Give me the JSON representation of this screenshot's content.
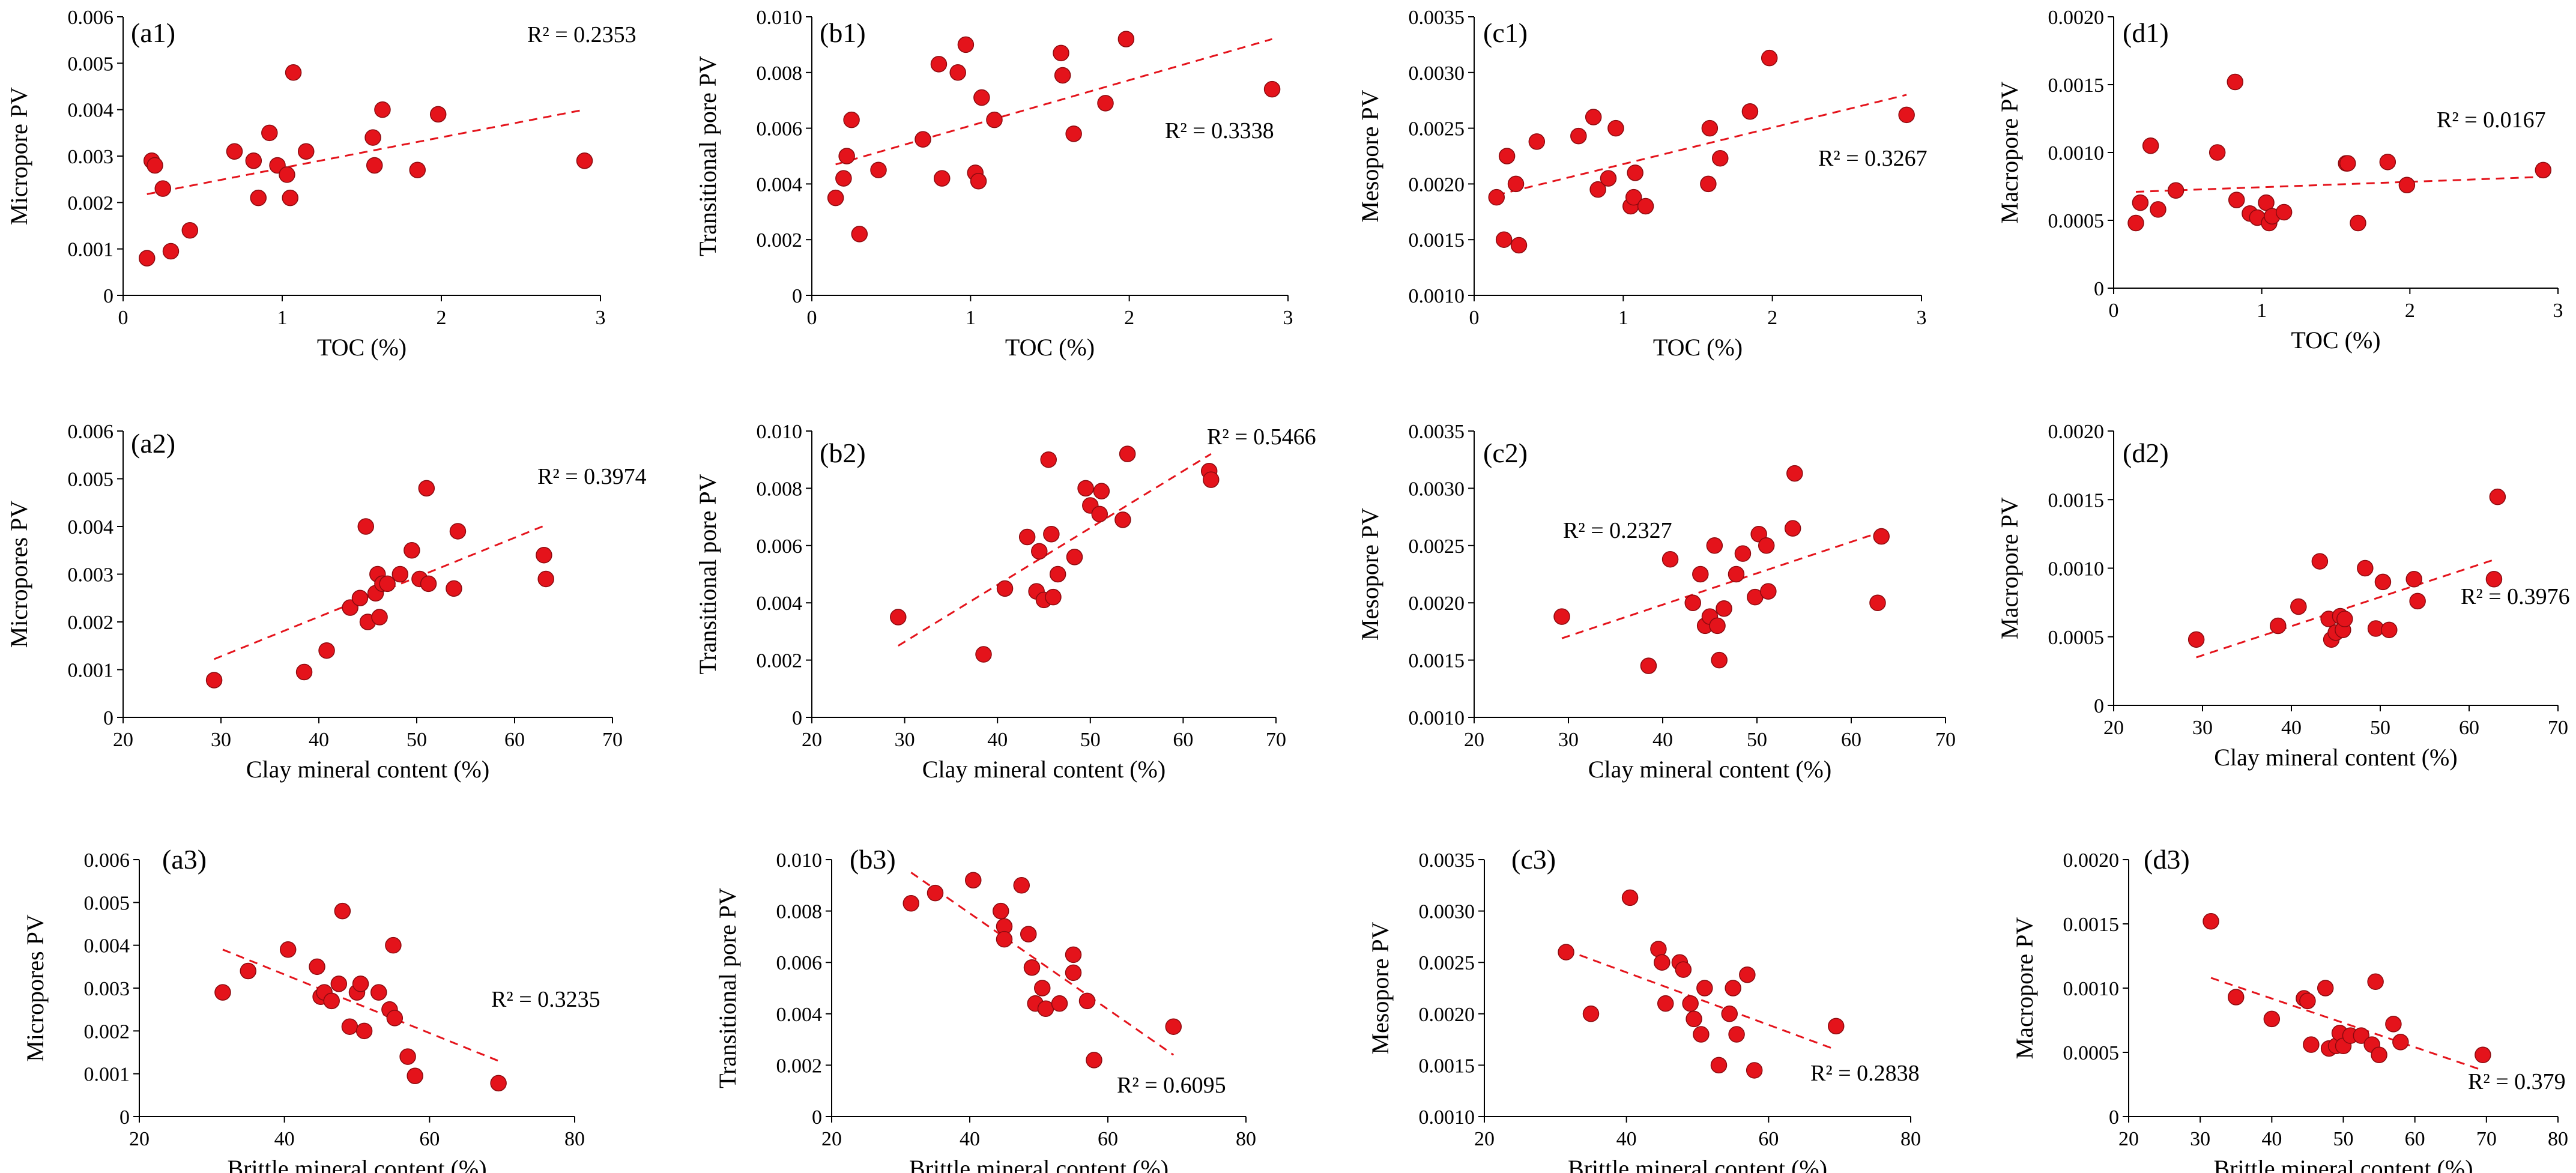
{
  "colors": {
    "point_fill": "#e4131b",
    "point_stroke": "#8b0a0f",
    "trend": "#e4131b",
    "axis": "#000000"
  },
  "chart_data": [
    {
      "id": "a1",
      "type": "scatter",
      "panel_label": "(a1)",
      "xlabel": "TOC (%)",
      "ylabel": "Micropore PV",
      "r2": "R² = 0.2353",
      "xlim": [
        0,
        3
      ],
      "ylim": [
        0,
        0.006
      ],
      "xticks": [
        0,
        1,
        2,
        3
      ],
      "yticks": [
        0,
        0.001,
        0.002,
        0.003,
        0.004,
        0.005,
        0.006
      ],
      "xtick_labels": [
        "0",
        "1",
        "2",
        "3"
      ],
      "ytick_labels": [
        "0",
        "0.001",
        "0.002",
        "0.003",
        "0.004",
        "0.005",
        "0.006"
      ],
      "x": [
        0.15,
        0.18,
        0.2,
        0.25,
        0.3,
        0.42,
        0.7,
        0.82,
        0.85,
        0.92,
        0.97,
        1.03,
        1.05,
        1.07,
        1.15,
        1.57,
        1.58,
        1.63,
        1.85,
        1.98,
        2.9
      ],
      "y": [
        0.0008,
        0.0029,
        0.0028,
        0.0023,
        0.00095,
        0.0014,
        0.0031,
        0.0029,
        0.0021,
        0.0035,
        0.0028,
        0.0026,
        0.0021,
        0.0048,
        0.0031,
        0.0034,
        0.0028,
        0.004,
        0.0027,
        0.0039,
        0.0029
      ],
      "trendline": {
        "x": [
          0.15,
          2.9
        ],
        "y": [
          0.00218,
          0.004
        ]
      }
    },
    {
      "id": "b1",
      "type": "scatter",
      "panel_label": "(b1)",
      "xlabel": "TOC (%)",
      "ylabel": "Transitional pore PV",
      "r2": "R² = 0.3338",
      "xlim": [
        0,
        3
      ],
      "ylim": [
        0,
        0.01
      ],
      "xticks": [
        0,
        1,
        2,
        3
      ],
      "yticks": [
        0,
        0.002,
        0.004,
        0.006,
        0.008,
        0.01
      ],
      "xtick_labels": [
        "0",
        "1",
        "2",
        "3"
      ],
      "ytick_labels": [
        "0",
        "0.002",
        "0.004",
        "0.006",
        "0.008",
        "0.010"
      ],
      "x": [
        0.15,
        0.2,
        0.22,
        0.25,
        0.3,
        0.42,
        0.7,
        0.8,
        0.82,
        0.92,
        0.97,
        1.03,
        1.05,
        1.07,
        1.15,
        1.57,
        1.58,
        1.65,
        1.85,
        1.98,
        2.9
      ],
      "y": [
        0.0035,
        0.0042,
        0.005,
        0.0063,
        0.0022,
        0.0045,
        0.0056,
        0.0083,
        0.0042,
        0.008,
        0.009,
        0.0044,
        0.0041,
        0.0071,
        0.0063,
        0.0087,
        0.0079,
        0.0058,
        0.0069,
        0.0092,
        0.0074
      ],
      "trendline": {
        "x": [
          0.15,
          2.9
        ],
        "y": [
          0.0047,
          0.0092
        ]
      }
    },
    {
      "id": "c1",
      "type": "scatter",
      "panel_label": "(c1)",
      "xlabel": "TOC (%)",
      "ylabel": "Mesopore PV",
      "r2": "R² = 0.3267",
      "xlim": [
        0,
        3
      ],
      "ylim": [
        0.001,
        0.0035
      ],
      "xticks": [
        0,
        1,
        2,
        3
      ],
      "yticks": [
        0.001,
        0.0015,
        0.002,
        0.0025,
        0.003,
        0.0035
      ],
      "xtick_labels": [
        "0",
        "1",
        "2",
        "3"
      ],
      "ytick_labels": [
        "0.0010",
        "0.0015",
        "0.0020",
        "0.0025",
        "0.0030",
        "0.0035"
      ],
      "x": [
        0.15,
        0.2,
        0.22,
        0.28,
        0.3,
        0.42,
        0.7,
        0.8,
        0.83,
        0.9,
        0.95,
        1.05,
        1.07,
        1.08,
        1.15,
        1.57,
        1.58,
        1.65,
        1.85,
        1.98,
        2.9
      ],
      "y": [
        0.00188,
        0.0015,
        0.00225,
        0.002,
        0.00145,
        0.00238,
        0.00243,
        0.0026,
        0.00195,
        0.00205,
        0.0025,
        0.0018,
        0.00188,
        0.0021,
        0.0018,
        0.002,
        0.0025,
        0.00223,
        0.00265,
        0.00313,
        0.00262
      ],
      "trendline": {
        "x": [
          0.15,
          2.9
        ],
        "y": [
          0.0019,
          0.0028
        ]
      }
    },
    {
      "id": "d1",
      "type": "scatter",
      "panel_label": "(d1)",
      "xlabel": "TOC (%)",
      "ylabel": "Macropore PV",
      "r2": "R² = 0.0167",
      "xlim": [
        0,
        3
      ],
      "ylim": [
        0,
        0.002
      ],
      "xticks": [
        0,
        1,
        2,
        3
      ],
      "yticks": [
        0,
        0.0005,
        0.001,
        0.0015,
        0.002
      ],
      "xtick_labels": [
        "0",
        "1",
        "2",
        "3"
      ],
      "ytick_labels": [
        "0",
        "0.0005",
        "0.0010",
        "0.0015",
        "0.0020"
      ],
      "x": [
        0.15,
        0.18,
        0.25,
        0.3,
        0.42,
        0.7,
        0.82,
        0.83,
        0.92,
        0.97,
        1.03,
        1.05,
        1.07,
        1.15,
        1.57,
        1.58,
        1.65,
        1.85,
        1.98,
        2.9
      ],
      "y": [
        0.00048,
        0.00063,
        0.00105,
        0.00058,
        0.00072,
        0.001,
        0.00152,
        0.00065,
        0.00055,
        0.00052,
        0.00063,
        0.00048,
        0.00053,
        0.00056,
        0.00092,
        0.00092,
        0.00048,
        0.00093,
        0.00076,
        0.00087
      ],
      "trendline": {
        "x": [
          0.15,
          2.9
        ],
        "y": [
          0.00071,
          0.00082
        ]
      }
    },
    {
      "id": "a2",
      "type": "scatter",
      "panel_label": "(a2)",
      "xlabel": "Clay mineral content (%)",
      "ylabel": "Micropores PV",
      "r2": "R² = 0.3974",
      "xlim": [
        20,
        70
      ],
      "ylim": [
        0,
        0.006
      ],
      "xticks": [
        20,
        30,
        40,
        50,
        60,
        70
      ],
      "yticks": [
        0,
        0.001,
        0.002,
        0.003,
        0.004,
        0.005,
        0.006
      ],
      "xtick_labels": [
        "20",
        "30",
        "40",
        "50",
        "60",
        "70"
      ],
      "ytick_labels": [
        "0",
        "0.001",
        "0.002",
        "0.003",
        "0.004",
        "0.005",
        "0.006"
      ],
      "x": [
        29.3,
        38.5,
        40.8,
        43.2,
        44.2,
        44.8,
        45.0,
        45.8,
        46.0,
        46.2,
        46.5,
        47.0,
        48.3,
        49.5,
        50.3,
        51.0,
        51.2,
        53.8,
        54.2,
        63.0,
        63.2
      ],
      "y": [
        0.00078,
        0.00095,
        0.0014,
        0.0023,
        0.0025,
        0.004,
        0.002,
        0.0026,
        0.003,
        0.0021,
        0.0028,
        0.0028,
        0.003,
        0.0035,
        0.0029,
        0.0048,
        0.0028,
        0.0027,
        0.0039,
        0.0034,
        0.0029
      ],
      "trendline": {
        "x": [
          29.3,
          63.2
        ],
        "y": [
          0.00122,
          0.00403
        ]
      }
    },
    {
      "id": "b2",
      "type": "scatter",
      "panel_label": "(b2)",
      "xlabel": "Clay mineral content (%)",
      "ylabel": "Transitional pore PV",
      "r2": "R² = 0.5466",
      "xlim": [
        20,
        70
      ],
      "ylim": [
        0,
        0.01
      ],
      "xticks": [
        20,
        30,
        40,
        50,
        60,
        70
      ],
      "yticks": [
        0,
        0.002,
        0.004,
        0.006,
        0.008,
        0.01
      ],
      "xtick_labels": [
        "20",
        "30",
        "40",
        "50",
        "60",
        "70"
      ],
      "ytick_labels": [
        "0",
        "0.002",
        "0.004",
        "0.006",
        "0.008",
        "0.010"
      ],
      "x": [
        29.3,
        38.5,
        40.8,
        43.2,
        44.2,
        44.5,
        45.0,
        45.5,
        45.8,
        46.0,
        46.5,
        48.3,
        49.5,
        50.0,
        51.0,
        51.2,
        53.5,
        54.0,
        62.8,
        63.0
      ],
      "y": [
        0.0035,
        0.0022,
        0.0045,
        0.0063,
        0.0044,
        0.0058,
        0.0041,
        0.009,
        0.0064,
        0.0042,
        0.005,
        0.0056,
        0.008,
        0.0074,
        0.0071,
        0.0079,
        0.0069,
        0.0092,
        0.0086,
        0.0083
      ],
      "trendline": {
        "x": [
          29.3,
          63.0
        ],
        "y": [
          0.0025,
          0.0092
        ]
      }
    },
    {
      "id": "c2",
      "type": "scatter",
      "panel_label": "(c2)",
      "xlabel": "Clay mineral content (%)",
      "ylabel": "Mesopore PV",
      "r2": "R² = 0.2327",
      "xlim": [
        20,
        70
      ],
      "ylim": [
        0.001,
        0.0035
      ],
      "xticks": [
        20,
        30,
        40,
        50,
        60,
        70
      ],
      "yticks": [
        0.001,
        0.0015,
        0.002,
        0.0025,
        0.003,
        0.0035
      ],
      "xtick_labels": [
        "20",
        "30",
        "40",
        "50",
        "60",
        "70"
      ],
      "ytick_labels": [
        "0.0010",
        "0.0015",
        "0.0020",
        "0.0025",
        "0.0030",
        "0.0035"
      ],
      "x": [
        29.3,
        38.5,
        40.8,
        43.2,
        44.0,
        44.5,
        45.0,
        45.5,
        45.8,
        46.0,
        46.5,
        47.8,
        48.5,
        49.8,
        50.2,
        51.0,
        51.2,
        53.8,
        54.0,
        62.8,
        63.2
      ],
      "y": [
        0.00188,
        0.00145,
        0.00238,
        0.002,
        0.00225,
        0.0018,
        0.00188,
        0.0025,
        0.0018,
        0.0015,
        0.00195,
        0.00225,
        0.00243,
        0.00205,
        0.0026,
        0.0025,
        0.0021,
        0.00265,
        0.00313,
        0.002,
        0.00258
      ],
      "trendline": {
        "x": [
          29.3,
          63.2
        ],
        "y": [
          0.00169,
          0.00262
        ]
      }
    },
    {
      "id": "d2",
      "type": "scatter",
      "panel_label": "(d2)",
      "xlabel": "Clay mineral content (%)",
      "ylabel": "Macropore PV",
      "r2": "R² = 0.3976",
      "xlim": [
        20,
        70
      ],
      "ylim": [
        0,
        0.002
      ],
      "xticks": [
        20,
        30,
        40,
        50,
        60,
        70
      ],
      "yticks": [
        0,
        0.0005,
        0.001,
        0.0015,
        0.002
      ],
      "xtick_labels": [
        "20",
        "30",
        "40",
        "50",
        "60",
        "70"
      ],
      "ytick_labels": [
        "0",
        "0.0005",
        "0.0010",
        "0.0015",
        "0.0020"
      ],
      "x": [
        29.3,
        38.5,
        40.8,
        43.2,
        44.2,
        44.5,
        45.0,
        45.5,
        45.8,
        46.0,
        48.3,
        49.5,
        50.3,
        51.0,
        53.8,
        54.2,
        62.8,
        63.2
      ],
      "y": [
        0.00048,
        0.00058,
        0.00072,
        0.00105,
        0.00063,
        0.00048,
        0.00053,
        0.00065,
        0.00055,
        0.00063,
        0.001,
        0.00056,
        0.0009,
        0.00055,
        0.00092,
        0.00076,
        0.00092,
        0.00152
      ],
      "trendline": {
        "x": [
          29.3,
          63.2
        ],
        "y": [
          0.00035,
          0.00107
        ]
      }
    },
    {
      "id": "a3",
      "type": "scatter",
      "panel_label": "(a3)",
      "xlabel": "Brittle mineral content (%)",
      "ylabel": "Micropores PV",
      "r2": "R² = 0.3235",
      "xlim": [
        20,
        80
      ],
      "ylim": [
        0,
        0.006
      ],
      "xticks": [
        20,
        40,
        60,
        80
      ],
      "yticks": [
        0,
        0.001,
        0.002,
        0.003,
        0.004,
        0.005,
        0.006
      ],
      "xtick_labels": [
        "20",
        "40",
        "60",
        "80"
      ],
      "ytick_labels": [
        "0",
        "0.001",
        "0.002",
        "0.003",
        "0.004",
        "0.005",
        "0.006"
      ],
      "x": [
        31.5,
        35.0,
        40.5,
        44.5,
        45.0,
        45.5,
        46.5,
        47.5,
        48.0,
        49.0,
        50.0,
        50.5,
        51.0,
        53.0,
        54.5,
        55.0,
        55.2,
        57.0,
        58.0,
        69.5
      ],
      "y": [
        0.0029,
        0.0034,
        0.0039,
        0.0035,
        0.0028,
        0.0029,
        0.0027,
        0.0031,
        0.0048,
        0.0021,
        0.0029,
        0.0031,
        0.002,
        0.0029,
        0.0025,
        0.004,
        0.0023,
        0.0014,
        0.00095,
        0.00078
      ],
      "trendline": {
        "x": [
          31.5,
          69.5
        ],
        "y": [
          0.0039,
          0.0013
        ]
      }
    },
    {
      "id": "b3",
      "type": "scatter",
      "panel_label": "(b3)",
      "xlabel": "Brittle mineral content (%)",
      "ylabel": "Transitional pore PV",
      "r2": "R² = 0.6095",
      "xlim": [
        20,
        80
      ],
      "ylim": [
        0,
        0.01
      ],
      "xticks": [
        20,
        40,
        60,
        80
      ],
      "yticks": [
        0,
        0.002,
        0.004,
        0.006,
        0.008,
        0.01
      ],
      "xtick_labels": [
        "20",
        "40",
        "60",
        "80"
      ],
      "ytick_labels": [
        "0",
        "0.002",
        "0.004",
        "0.006",
        "0.008",
        "0.010"
      ],
      "x": [
        31.5,
        35.0,
        40.5,
        44.5,
        45.0,
        45.0,
        47.5,
        48.5,
        49.0,
        49.5,
        50.5,
        51.0,
        53.0,
        55.0,
        55.0,
        57.0,
        58.0,
        69.5
      ],
      "y": [
        0.0083,
        0.0087,
        0.0092,
        0.008,
        0.0074,
        0.0069,
        0.009,
        0.0071,
        0.0058,
        0.0044,
        0.005,
        0.0042,
        0.0044,
        0.0063,
        0.0056,
        0.0045,
        0.0022,
        0.0035
      ],
      "trendline": {
        "x": [
          31.5,
          69.5
        ],
        "y": [
          0.0095,
          0.0024
        ]
      }
    },
    {
      "id": "c3",
      "type": "scatter",
      "panel_label": "(c3)",
      "xlabel": "Brittle mineral content (%)",
      "ylabel": "Mesopore PV",
      "r2": "R² = 0.2838",
      "xlim": [
        20,
        80
      ],
      "ylim": [
        0.001,
        0.0035
      ],
      "xticks": [
        20,
        40,
        60,
        80
      ],
      "yticks": [
        0.001,
        0.0015,
        0.002,
        0.0025,
        0.003,
        0.0035
      ],
      "xtick_labels": [
        "20",
        "40",
        "60",
        "80"
      ],
      "ytick_labels": [
        "0.0010",
        "0.0015",
        "0.0020",
        "0.0025",
        "0.0030",
        "0.0035"
      ],
      "x": [
        31.5,
        35.0,
        40.5,
        44.5,
        45.0,
        45.5,
        47.5,
        48.0,
        49.0,
        49.5,
        50.5,
        51.0,
        53.0,
        54.5,
        55.0,
        55.5,
        57.0,
        58.0,
        69.5
      ],
      "y": [
        0.0026,
        0.002,
        0.00313,
        0.00263,
        0.0025,
        0.0021,
        0.0025,
        0.00243,
        0.0021,
        0.00195,
        0.0018,
        0.00225,
        0.0015,
        0.002,
        0.00225,
        0.0018,
        0.00238,
        0.00145,
        0.00188
      ],
      "trendline": {
        "x": [
          31.5,
          69.5
        ],
        "y": [
          0.00262,
          0.00165
        ]
      }
    },
    {
      "id": "d3",
      "type": "scatter",
      "panel_label": "(d3)",
      "xlabel": "Brittle mineral content (%)",
      "ylabel": "Macropore PV",
      "r2": "R² = 0.379",
      "xlim": [
        20,
        80
      ],
      "ylim": [
        0,
        0.002
      ],
      "xticks": [
        20,
        30,
        40,
        50,
        60,
        70,
        80
      ],
      "yticks": [
        0,
        0.0005,
        0.001,
        0.0015,
        0.002
      ],
      "xtick_labels": [
        "20",
        "30",
        "40",
        "50",
        "60",
        "70",
        "80"
      ],
      "ytick_labels": [
        "0",
        "0.0005",
        "0.0010",
        "0.0015",
        "0.0020"
      ],
      "x": [
        31.5,
        35.0,
        40.0,
        44.5,
        45.0,
        45.5,
        47.5,
        48.0,
        49.0,
        49.5,
        50.0,
        51.0,
        52.5,
        54.0,
        54.5,
        55.0,
        57.0,
        58.0,
        69.5
      ],
      "y": [
        0.00152,
        0.00093,
        0.00076,
        0.00092,
        0.0009,
        0.00056,
        0.001,
        0.00053,
        0.00055,
        0.00065,
        0.00055,
        0.00063,
        0.00063,
        0.00056,
        0.00105,
        0.00048,
        0.00072,
        0.00058,
        0.00048
      ],
      "trendline": {
        "x": [
          31.5,
          69.5
        ],
        "y": [
          0.00108,
          0.00036
        ]
      }
    }
  ]
}
